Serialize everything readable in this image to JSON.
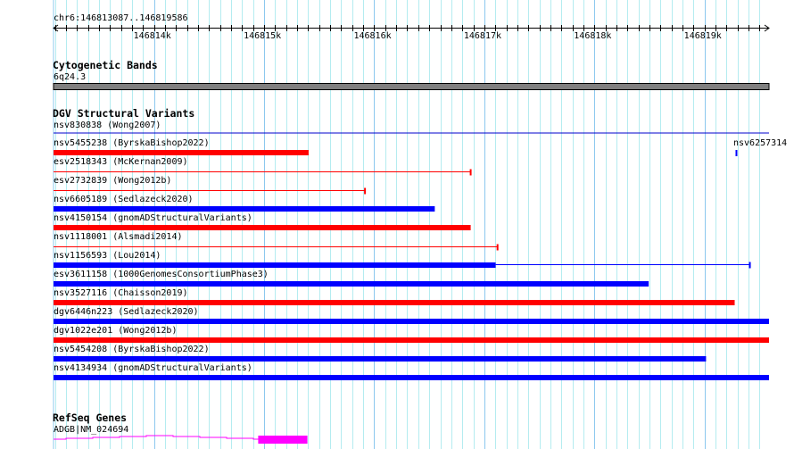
{
  "view": {
    "chrom": "chr6",
    "start": 146813087,
    "end": 146819586,
    "location_label": "chr6:146813087..146819586"
  },
  "ruler": {
    "tick_labels": [
      "146814k",
      "146815k",
      "146816k",
      "146817k",
      "146818k",
      "146819k"
    ]
  },
  "tracks": {
    "cytoband": {
      "title": "Cytogenetic Bands",
      "band_label": "6q24.3",
      "color": "#808080"
    },
    "dgv": {
      "title": "DGV Structural Variants",
      "features": [
        {
          "label": "nsv830838 (Wong2007)",
          "start": 146813000,
          "end": 146819586,
          "color": "#0000cc",
          "style": "line"
        },
        {
          "label": "nsv5455238 (ByrskaBishop2022)",
          "start": 146813000,
          "end": 146815404,
          "color": "#ff0000",
          "style": "bar"
        },
        {
          "label": "esv2518343 (McKernan2009)",
          "start": 146813000,
          "end": 146816876,
          "color": "#ff0000",
          "style": "line"
        },
        {
          "label": "esv2732839 (Wong2012b)",
          "start": 146813000,
          "end": 146815916,
          "color": "#ff0000",
          "style": "line"
        },
        {
          "label": "nsv6605189 (Sedlazeck2020)",
          "start": 146813000,
          "end": 146816550,
          "color": "#0000ff",
          "style": "bar"
        },
        {
          "label": "nsv4150154 (gnomADStructuralVariants)",
          "start": 146813000,
          "end": 146816876,
          "color": "#ff0000",
          "style": "bar"
        },
        {
          "label": "nsv1118001 (Alsmadi2014)",
          "start": 146813000,
          "end": 146817120,
          "color": "#ff0000",
          "style": "line"
        },
        {
          "label": "nsv1156593 (Lou2014)",
          "start": 146813000,
          "end": 146819412,
          "thick_end": 146817103,
          "color": "#0000ff",
          "style": "bar-line"
        },
        {
          "label": "esv3611158 (1000GenomesConsortiumPhase3)",
          "start": 146813000,
          "end": 146818493,
          "color": "#0000ff",
          "style": "bar"
        },
        {
          "label": "nsv3527116 (Chaisson2019)",
          "start": 146813000,
          "end": 146819274,
          "color": "#ff0000",
          "style": "bar"
        },
        {
          "label": "dgv6446n223 (Sedlazeck2020)",
          "start": 146813000,
          "end": 146819586,
          "color": "#0000ff",
          "style": "bar"
        },
        {
          "label": "dgv1022e201 (Wong2012b)",
          "start": 146813000,
          "end": 146819586,
          "color": "#ff0000",
          "style": "bar"
        },
        {
          "label": "nsv5454208 (ByrskaBishop2022)",
          "start": 146813000,
          "end": 146819014,
          "color": "#0000ff",
          "style": "bar"
        },
        {
          "label": "nsv4134934 (gnomADStructuralVariants)",
          "start": 146813000,
          "end": 146819586,
          "color": "#0000ff",
          "style": "bar"
        }
      ],
      "side_feature": {
        "label": "nsv6257314",
        "start": 146819282,
        "end": 146819300,
        "color": "#0000ff"
      }
    },
    "refseq": {
      "title": "RefSeq Genes",
      "gene_label": "ADGB|NM_024694",
      "color": "#ff00ff",
      "exon_start": 146814946,
      "exon_end": 146815393
    }
  }
}
